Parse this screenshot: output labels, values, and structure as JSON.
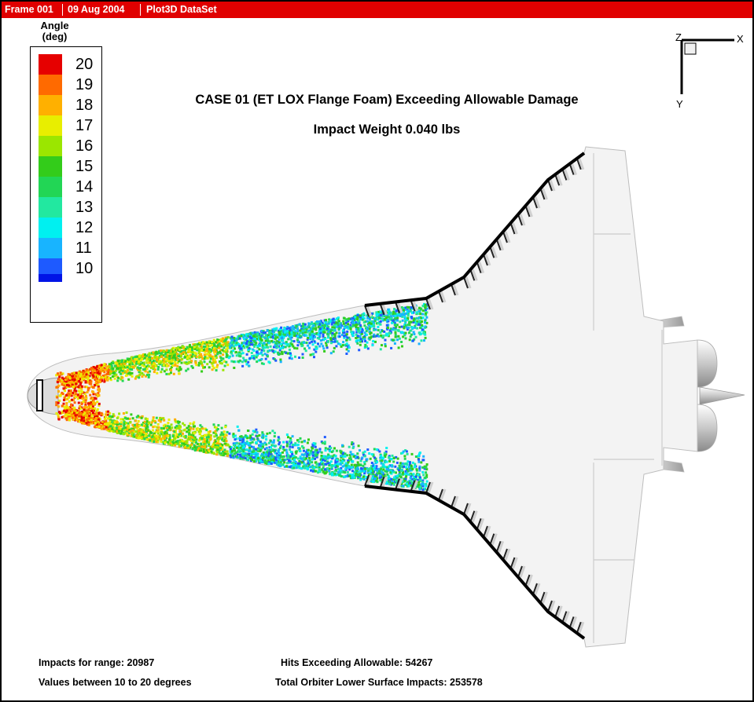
{
  "titlebar": {
    "frame": "Frame 001",
    "date": "09 Aug 2004",
    "dataset": "Plot3D DataSet"
  },
  "colors": {
    "titlebar": "#e00000",
    "wing_edge": "#000000",
    "orbiter": "#f3f3f3"
  },
  "legend": {
    "title_line1": "Angle",
    "title_line2": "(deg)",
    "levels": [
      {
        "value": "20",
        "color": "#e60000"
      },
      {
        "value": "19",
        "color": "#ff6a00"
      },
      {
        "value": "18",
        "color": "#ffb000"
      },
      {
        "value": "17",
        "color": "#e8ee00"
      },
      {
        "value": "16",
        "color": "#9be600"
      },
      {
        "value": "15",
        "color": "#33cc1a"
      },
      {
        "value": "14",
        "color": "#22d655"
      },
      {
        "value": "13",
        "color": "#22e8a0"
      },
      {
        "value": "12",
        "color": "#00f0f0"
      },
      {
        "value": "11",
        "color": "#18b4ff"
      },
      {
        "value": "10",
        "color": "#1e5aff"
      }
    ],
    "bottom_color": "#0014e6"
  },
  "plot_title": {
    "line1": "CASE 01 (ET LOX Flange Foam) Exceeding Allowable Damage",
    "line2": "Impact Weight 0.040 lbs"
  },
  "axes": {
    "x": "X",
    "y": "Y",
    "z": "Z"
  },
  "footer": {
    "impacts_range": "Impacts for range: 20987",
    "values_between": "Values between 10 to 20 degrees",
    "hits_exceeding": "Hits Exceeding Allowable: 54267",
    "total_impacts": "Total Orbiter Lower Surface Impacts: 253578"
  }
}
